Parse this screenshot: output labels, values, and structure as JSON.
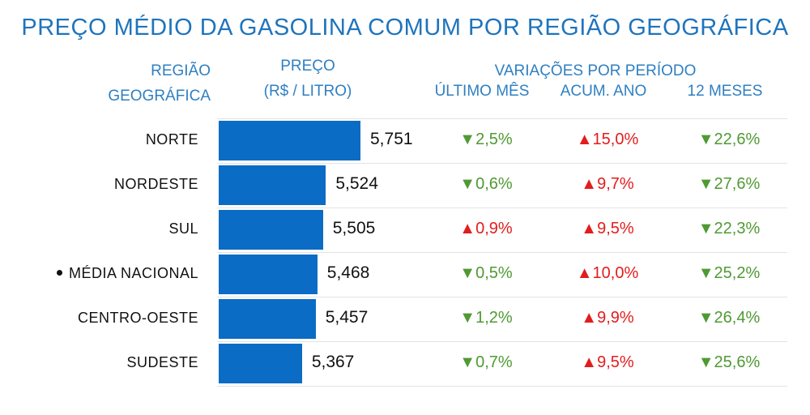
{
  "title": "PREÇO MÉDIO DA GASOLINA COMUM POR REGIÃO GEOGRÁFICA",
  "headers": {
    "region_l1": "REGIÃO",
    "region_l2": "GEOGRÁFICA",
    "price_l1": "PREÇO",
    "price_l2": "(R$ / LITRO)",
    "variations": "VARIAÇÕES POR PERÍODO",
    "last_month": "ÚLTIMO MÊS",
    "year_acc": "ACUM. ANO",
    "twelve_months": "12 MESES"
  },
  "colors": {
    "bar": "#0a6cc4",
    "up": "#e21d1d",
    "down": "#4f9a33",
    "header": "#1f74bc"
  },
  "chart_data": {
    "type": "bar",
    "title": "PREÇO MÉDIO DA GASOLINA COMUM POR REGIÃO GEOGRÁFICA",
    "categories": [
      "NORTE",
      "NORDESTE",
      "SUL",
      "MÉDIA NACIONAL",
      "CENTRO-OESTE",
      "SUDESTE"
    ],
    "values": [
      5.751,
      5.524,
      5.505,
      5.468,
      5.457,
      5.367
    ],
    "value_labels": [
      "5,751",
      "5,524",
      "5,505",
      "5,468",
      "5,457",
      "5,367"
    ],
    "xlim": [
      4.82,
      5.751
    ],
    "marked_category": "MÉDIA NACIONAL",
    "variations": {
      "last_month": [
        {
          "dir": "down",
          "text": "▼2,5%"
        },
        {
          "dir": "down",
          "text": "▼0,6%"
        },
        {
          "dir": "up",
          "text": "▲0,9%"
        },
        {
          "dir": "down",
          "text": "▼0,5%"
        },
        {
          "dir": "down",
          "text": "▼1,2%"
        },
        {
          "dir": "down",
          "text": "▼0,7%"
        }
      ],
      "year_acc": [
        {
          "dir": "up",
          "text": "▲15,0%"
        },
        {
          "dir": "up",
          "text": "▲9,7%"
        },
        {
          "dir": "up",
          "text": "▲9,5%"
        },
        {
          "dir": "up",
          "text": "▲10,0%"
        },
        {
          "dir": "up",
          "text": "▲9,9%"
        },
        {
          "dir": "up",
          "text": "▲9,5%"
        }
      ],
      "twelve_months": [
        {
          "dir": "down",
          "text": "▼22,6%"
        },
        {
          "dir": "down",
          "text": "▼27,6%"
        },
        {
          "dir": "down",
          "text": "▼22,3%"
        },
        {
          "dir": "down",
          "text": "▼25,2%"
        },
        {
          "dir": "down",
          "text": "▼26,4%"
        },
        {
          "dir": "down",
          "text": "▼25,6%"
        }
      ]
    }
  }
}
